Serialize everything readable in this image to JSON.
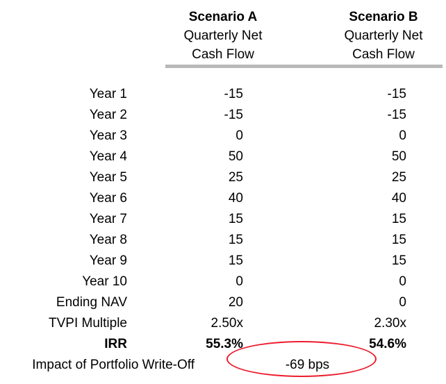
{
  "table": {
    "columns": [
      {
        "title": "Scenario A",
        "subtitle1": "Quarterly Net",
        "subtitle2": "Cash Flow"
      },
      {
        "title": "Scenario B",
        "subtitle1": "Quarterly Net",
        "subtitle2": "Cash Flow"
      }
    ],
    "rows": [
      {
        "label": "Year 1",
        "a": "-15",
        "b": "-15"
      },
      {
        "label": "Year 2",
        "a": "-15",
        "b": "-15"
      },
      {
        "label": "Year 3",
        "a": "0",
        "b": "0"
      },
      {
        "label": "Year 4",
        "a": "50",
        "b": "50"
      },
      {
        "label": "Year 5",
        "a": "25",
        "b": "25"
      },
      {
        "label": "Year 6",
        "a": "40",
        "b": "40"
      },
      {
        "label": "Year 7",
        "a": "15",
        "b": "15"
      },
      {
        "label": "Year 8",
        "a": "15",
        "b": "15"
      },
      {
        "label": "Year 9",
        "a": "15",
        "b": "15"
      },
      {
        "label": "Year 10",
        "a": "0",
        "b": "0"
      },
      {
        "label": "Ending NAV",
        "a": "20",
        "b": "0"
      },
      {
        "label": "TVPI Multiple",
        "a": "2.50x",
        "b": "2.30x"
      },
      {
        "label": "IRR",
        "a": "55.3%",
        "b": "54.6%"
      }
    ],
    "footer": {
      "label": "Impact of Portfolio Write-Off",
      "value": "-69 bps"
    }
  },
  "colors": {
    "accent_red": "#ed1b2d",
    "rule_gray": "#b9b9b9"
  },
  "chart_data": {
    "type": "table",
    "title": "",
    "columns": [
      "",
      "Scenario A Quarterly Net Cash Flow",
      "Scenario B Quarterly Net Cash Flow"
    ],
    "rows": [
      [
        "Year 1",
        -15,
        -15
      ],
      [
        "Year 2",
        -15,
        -15
      ],
      [
        "Year 3",
        0,
        0
      ],
      [
        "Year 4",
        50,
        50
      ],
      [
        "Year 5",
        25,
        25
      ],
      [
        "Year 6",
        40,
        40
      ],
      [
        "Year 7",
        15,
        15
      ],
      [
        "Year 8",
        15,
        15
      ],
      [
        "Year 9",
        15,
        15
      ],
      [
        "Year 10",
        0,
        0
      ],
      [
        "Ending NAV",
        20,
        0
      ],
      [
        "TVPI Multiple",
        "2.50x",
        "2.30x"
      ],
      [
        "IRR",
        "55.3%",
        "54.6%"
      ],
      [
        "Impact of Portfolio Write-Off",
        "-69 bps",
        ""
      ]
    ]
  }
}
